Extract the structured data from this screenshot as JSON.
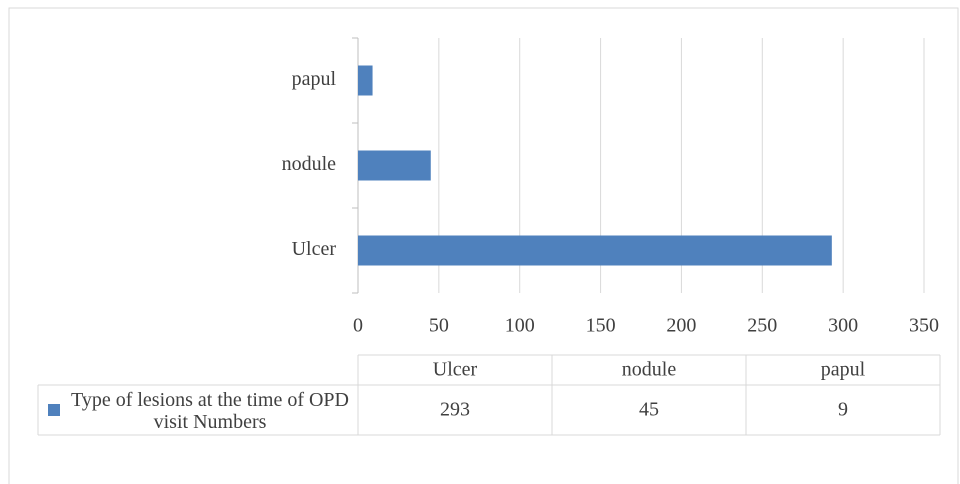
{
  "chart_data": {
    "type": "bar",
    "orientation": "horizontal",
    "categories": [
      "Ulcer",
      "nodule",
      "papul"
    ],
    "series": [
      {
        "name": "Type of lesions at the time of OPD visit Numbers",
        "color": "#4f81bd",
        "values": [
          293,
          45,
          9
        ]
      }
    ],
    "xlim": [
      0,
      350
    ],
    "xticks": [
      0,
      50,
      100,
      150,
      200,
      250,
      300,
      350
    ],
    "grid": true,
    "data_table": true
  }
}
